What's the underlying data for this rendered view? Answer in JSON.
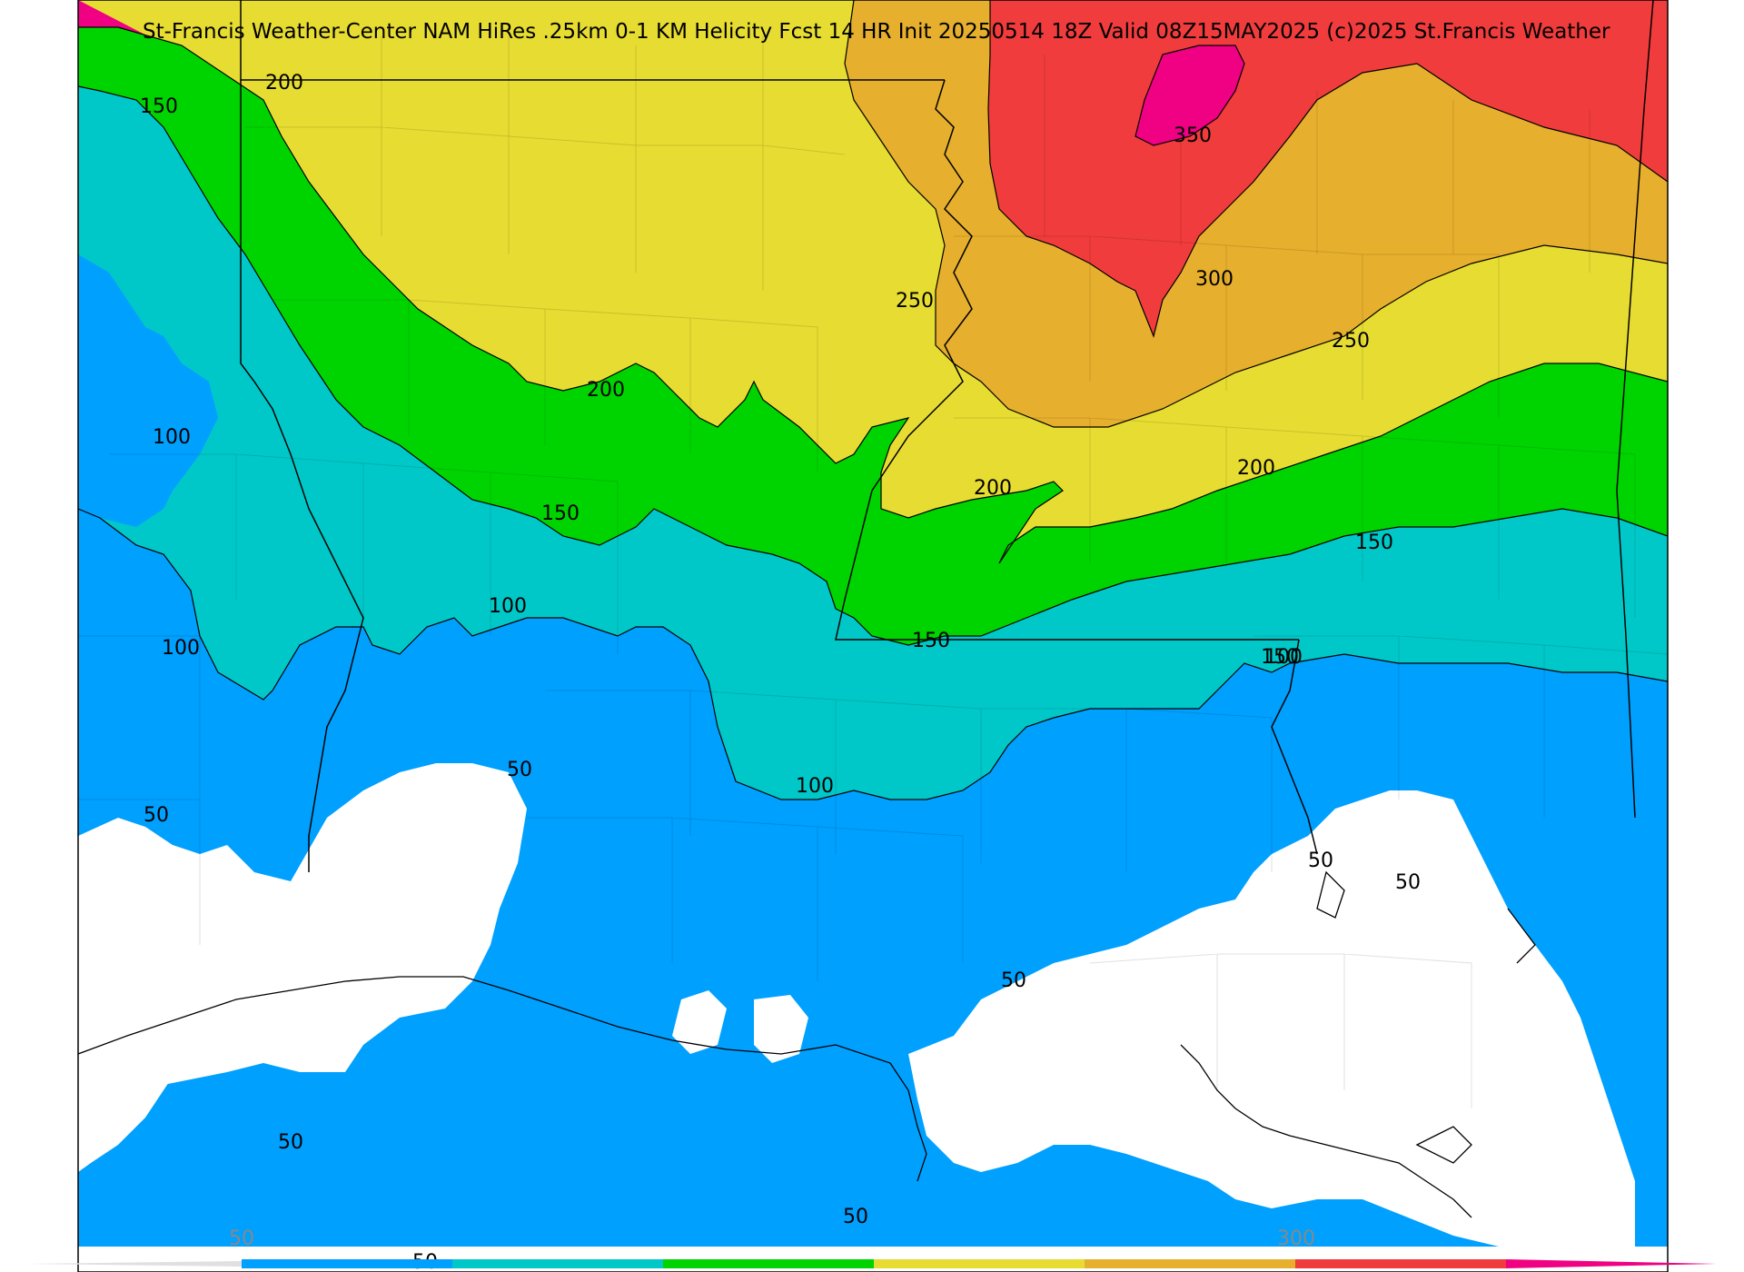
{
  "title": "St-Francis Weather-Center NAM HiRes .25km 0-1 KM Helicity Fcst 14 HR Init 20250514 18Z  Valid 08Z15MAY2025    (c)2025 St.Francis Weather",
  "colors": {
    "level_50": "#00a0ff",
    "level_100": "#00c8c8",
    "level_150": "#00d400",
    "level_200": "#e6dc32",
    "level_250": "#e6af2d",
    "level_300": "#f03c3c",
    "level_350": "#f00082",
    "below_50": "#ffffff"
  },
  "contour_labels": [
    "200",
    "150",
    "150",
    "200",
    "250",
    "350",
    "300",
    "250",
    "100",
    "200",
    "150",
    "200",
    "150",
    "100",
    "100",
    "150",
    "100",
    "50",
    "100",
    "50",
    "50",
    "50",
    "50",
    "50",
    "50",
    "50"
  ],
  "colorbar": {
    "tick_labels": [
      "50",
      "300"
    ],
    "colors": [
      "#00a0ff",
      "#00c8c8",
      "#00d400",
      "#e6dc32",
      "#e6af2d",
      "#f03c3c",
      "#f00082"
    ]
  }
}
